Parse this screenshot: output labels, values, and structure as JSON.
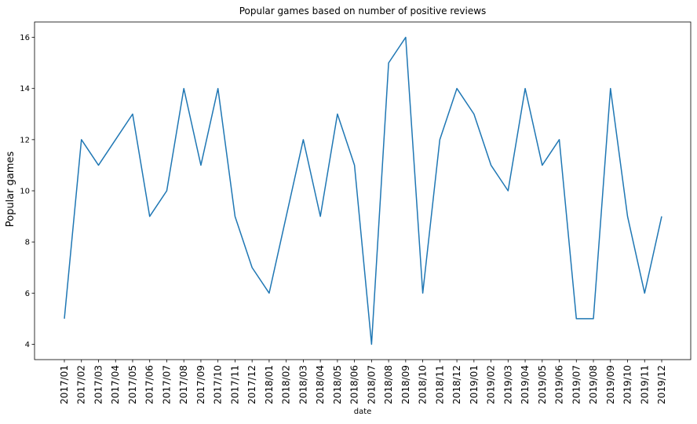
{
  "chart_data": {
    "type": "line",
    "title": "Popular games based on number of positive reviews",
    "xlabel": "date",
    "ylabel": "Popular games",
    "categories": [
      "2017/01",
      "2017/02",
      "2017/03",
      "2017/04",
      "2017/05",
      "2017/06",
      "2017/07",
      "2017/08",
      "2017/09",
      "2017/10",
      "2017/11",
      "2017/12",
      "2018/01",
      "2018/02",
      "2018/03",
      "2018/04",
      "2018/05",
      "2018/06",
      "2018/07",
      "2018/08",
      "2018/09",
      "2018/10",
      "2018/11",
      "2018/12",
      "2019/01",
      "2019/02",
      "2019/03",
      "2019/04",
      "2019/05",
      "2019/06",
      "2019/07",
      "2019/08",
      "2019/09",
      "2019/10",
      "2019/11",
      "2019/12"
    ],
    "values": [
      5,
      12,
      11,
      12,
      13,
      9,
      10,
      14,
      11,
      14,
      9,
      7,
      6,
      9,
      12,
      9,
      13,
      11,
      4,
      15,
      16,
      6,
      12,
      14,
      13,
      11,
      10,
      14,
      11,
      12,
      5,
      5,
      14,
      9,
      6,
      9
    ],
    "yticks": [
      4,
      6,
      8,
      10,
      12,
      14,
      16
    ],
    "ylim": [
      3.4,
      16.6
    ],
    "grid": false,
    "line_color": "#1f77b4"
  }
}
